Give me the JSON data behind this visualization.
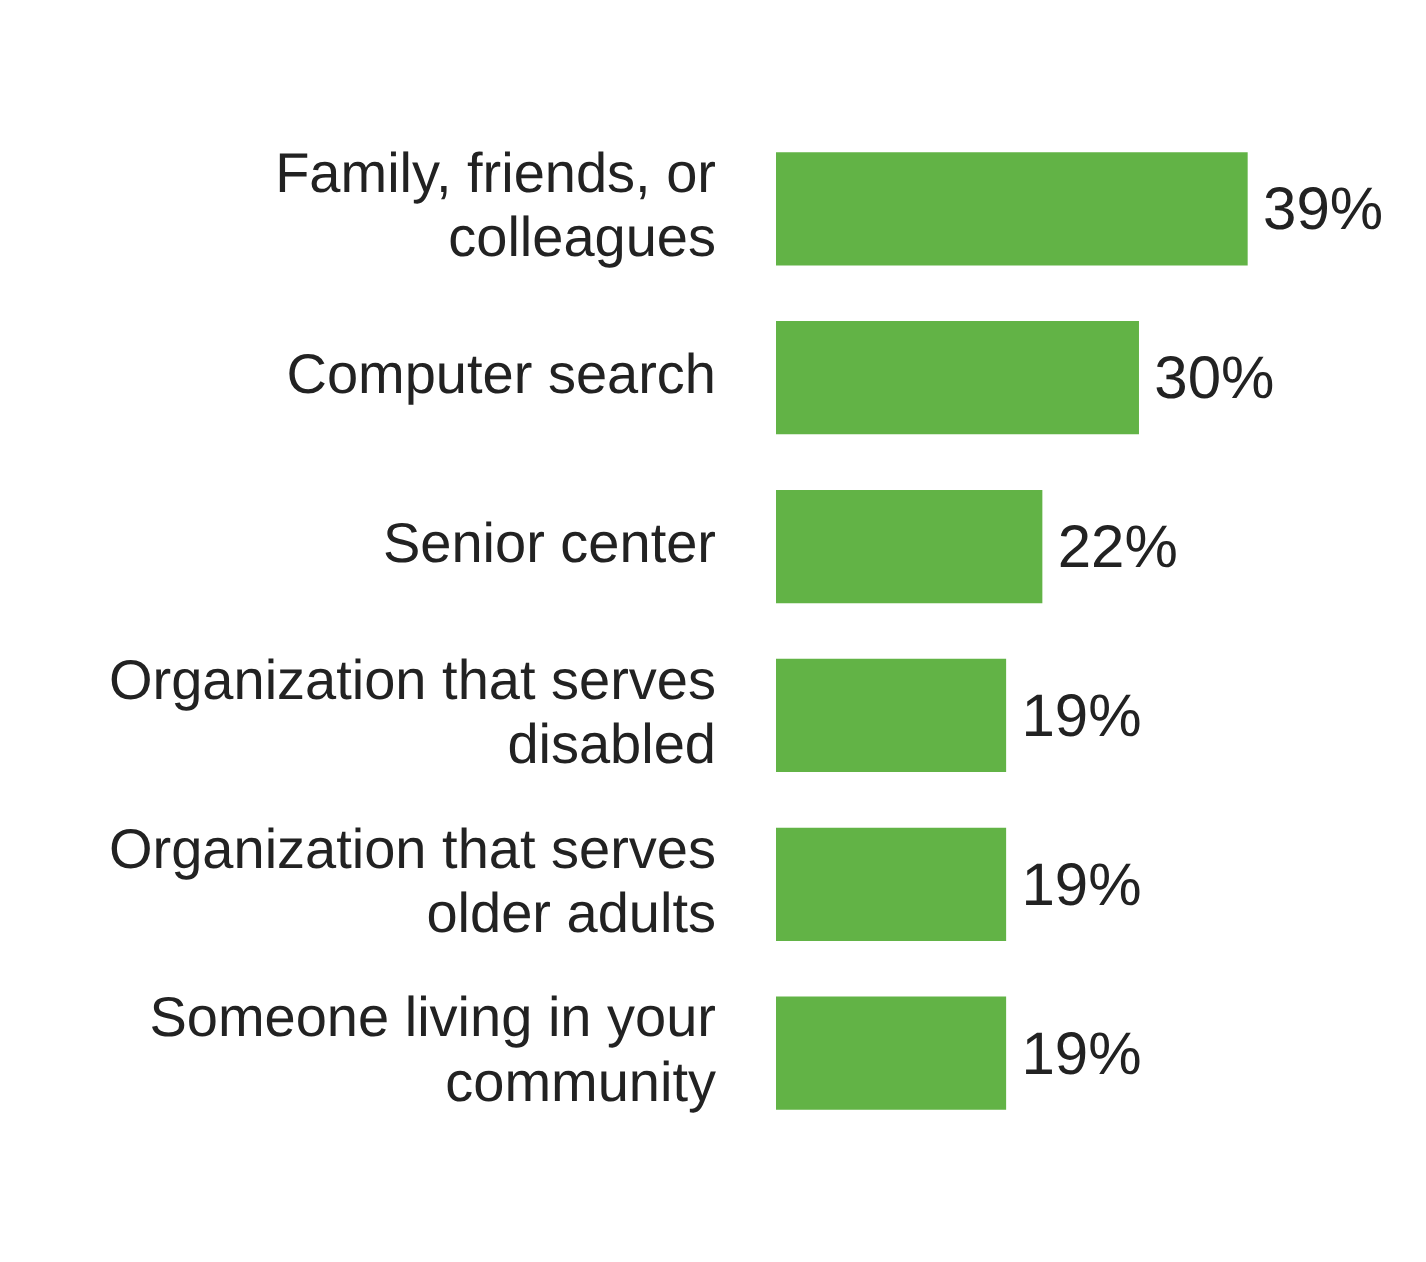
{
  "chart_data": {
    "type": "bar",
    "orientation": "horizontal",
    "categories": [
      "Family, friends, or colleagues",
      "Computer search",
      "Senior center",
      "Organization that serves disabled",
      "Organization that serves older adults",
      "Someone living in your community"
    ],
    "values": [
      39,
      30,
      22,
      19,
      19,
      19
    ],
    "color": "#62b346",
    "value_labels": [
      "39%",
      "30%",
      "22%",
      "19%",
      "19%",
      "19%"
    ],
    "grid": false,
    "legend": false,
    "tick_labels": "y"
  }
}
